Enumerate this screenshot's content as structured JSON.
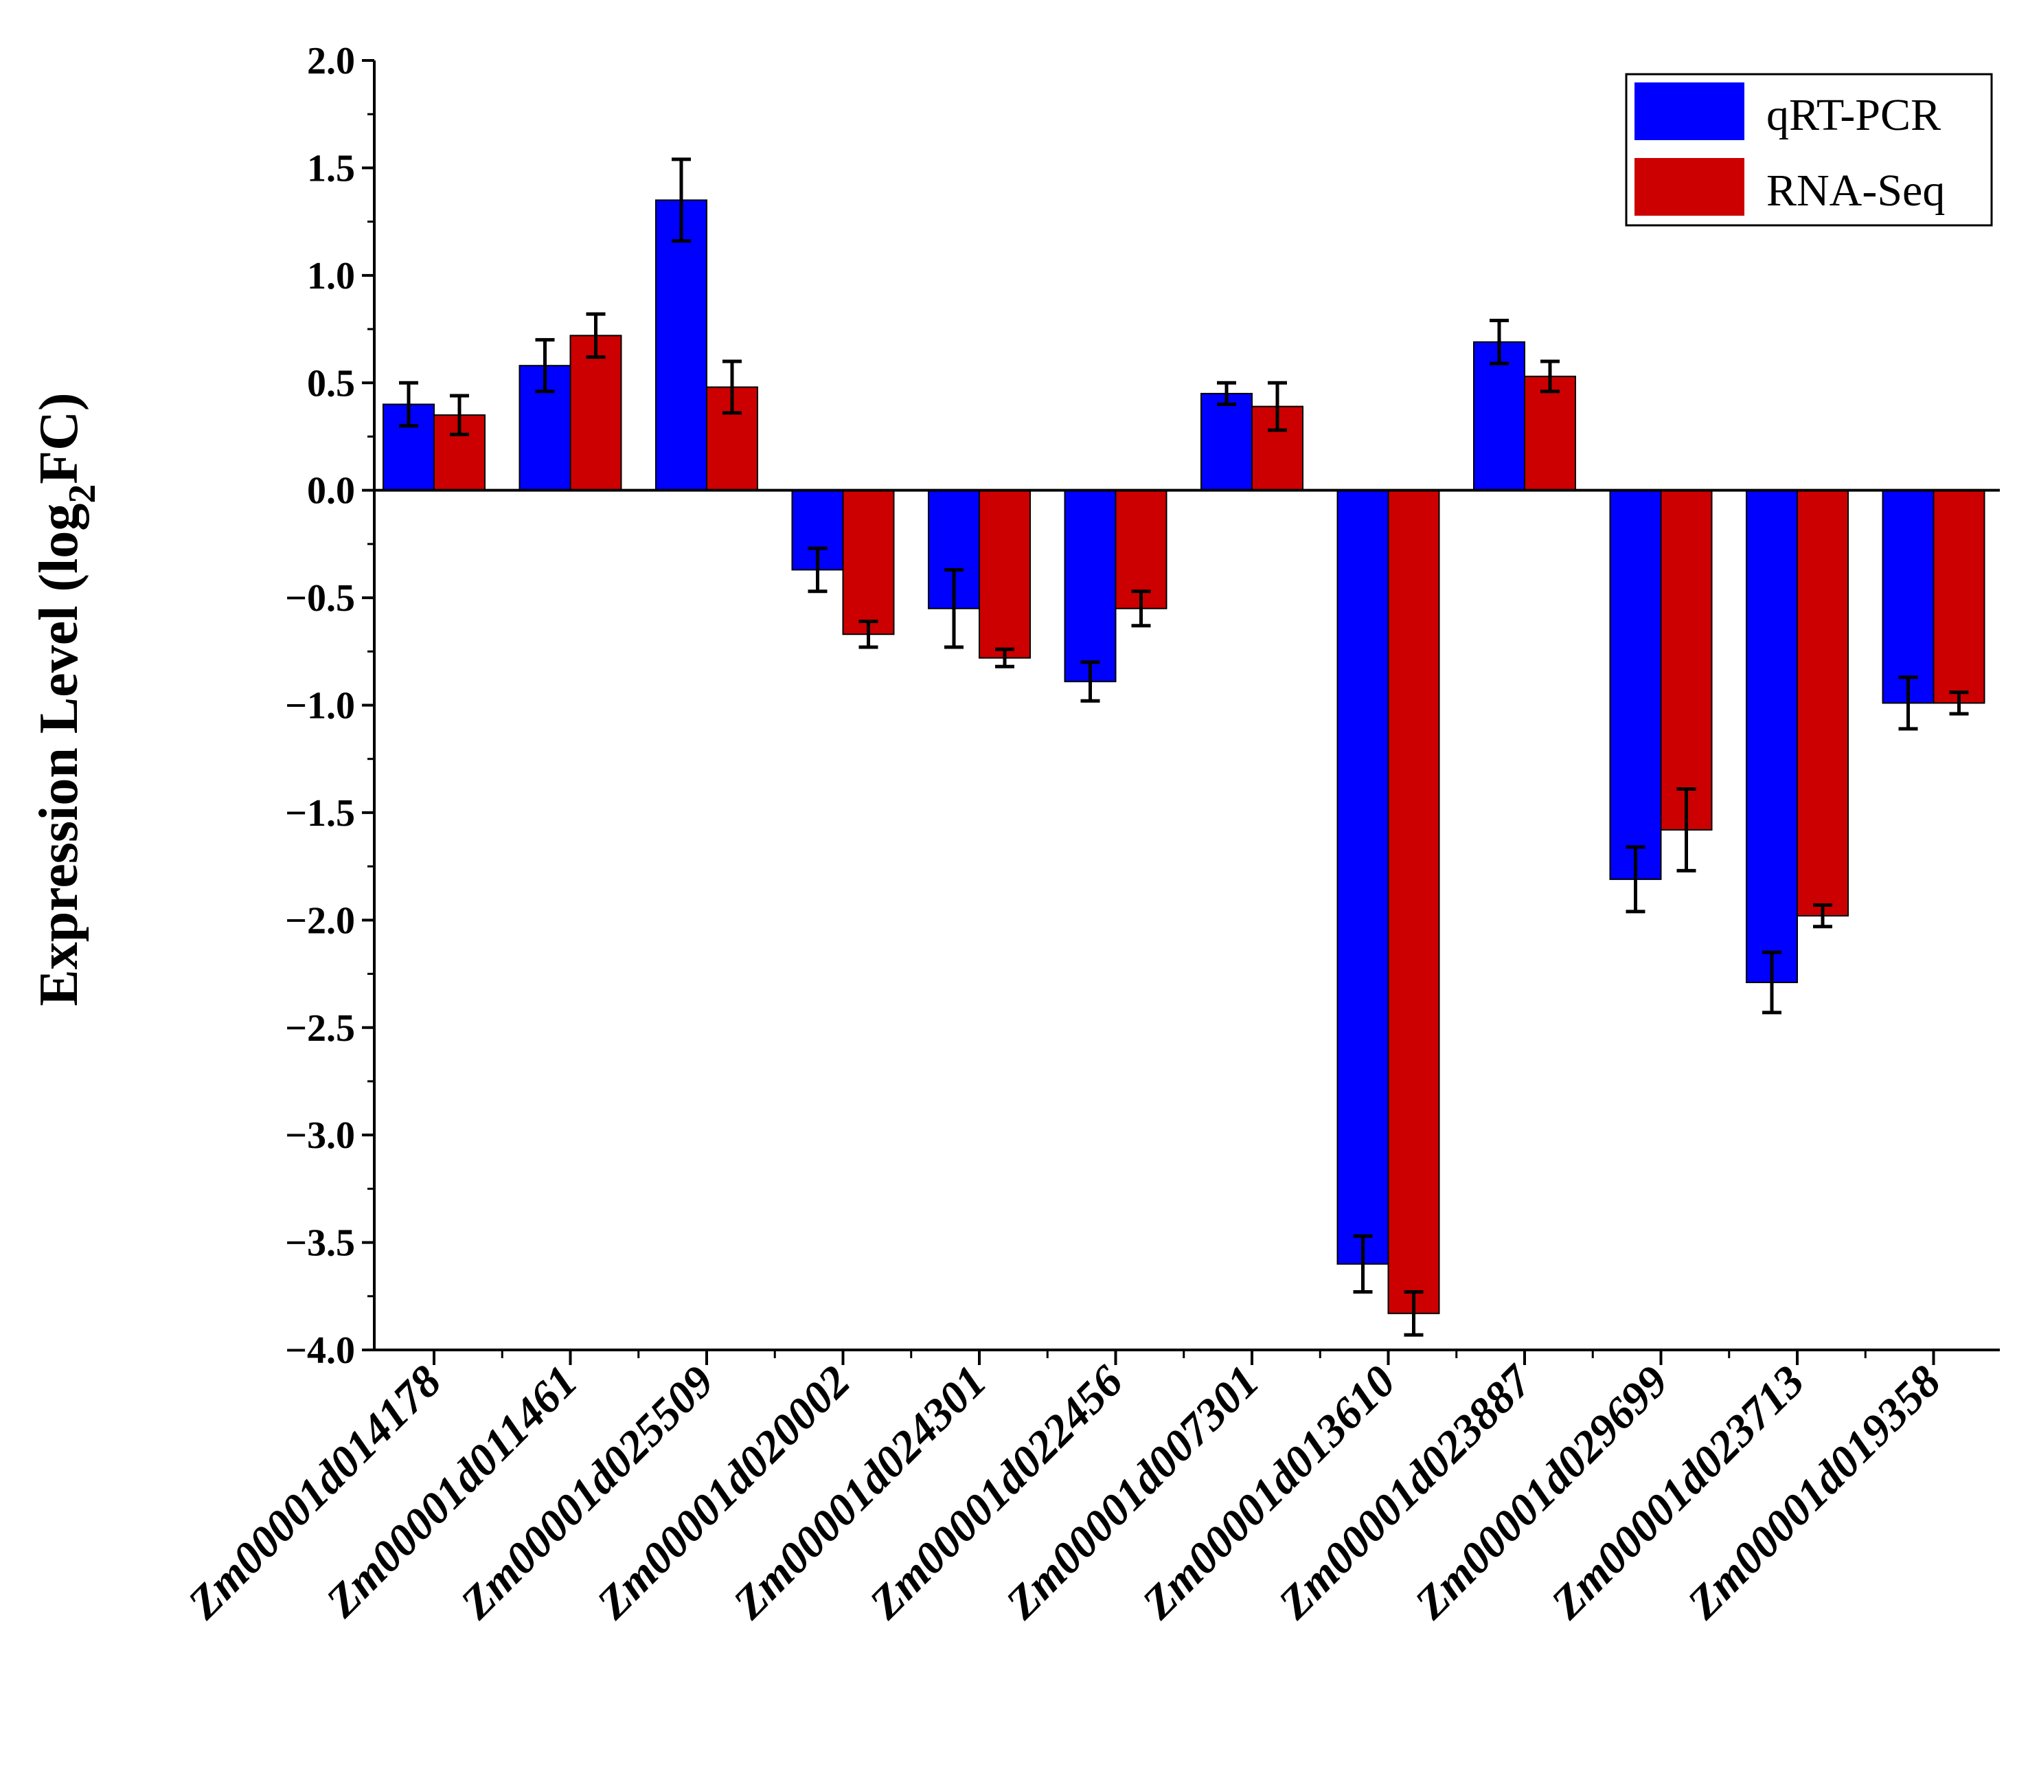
{
  "chart_data": {
    "type": "bar",
    "title": "",
    "xlabel": "",
    "ylabel_main": "Expression Level (log",
    "ylabel_sub": "2",
    "ylabel_tail": "FC)",
    "ylim": [
      -4.0,
      2.0
    ],
    "yticks": [
      2.0,
      1.5,
      1.0,
      0.5,
      0.0,
      -0.5,
      -1.0,
      -1.5,
      -2.0,
      -2.5,
      -3.0,
      -3.5,
      -4.0
    ],
    "ytick_labels": [
      "2.0",
      "1.5",
      "1.0",
      "0.5",
      "0.0",
      "−0.5",
      "−1.0",
      "−1.5",
      "−2.0",
      "−2.5",
      "−3.0",
      "−3.5",
      "−4.0"
    ],
    "categories": [
      "Zm00001d014178",
      "Zm00001d011461",
      "Zm00001d025509",
      "Zm00001d020002",
      "Zm00001d024301",
      "Zm00001d022456",
      "Zm00001d007301",
      "Zm00001d013610",
      "Zm00001d023887",
      "Zm00001d029699",
      "Zm00001d023713",
      "Zm00001d019358"
    ],
    "series": [
      {
        "name": "qRT-PCR",
        "color": "#0000ff",
        "values": [
          0.4,
          0.58,
          1.35,
          -0.37,
          -0.55,
          -0.89,
          0.45,
          -3.6,
          0.69,
          -1.81,
          -2.29,
          -0.99
        ],
        "errors": [
          0.1,
          0.12,
          0.19,
          0.1,
          0.18,
          0.09,
          0.05,
          0.13,
          0.1,
          0.15,
          0.14,
          0.12
        ]
      },
      {
        "name": "RNA-Seq",
        "color": "#cc0000",
        "values": [
          0.35,
          0.72,
          0.48,
          -0.67,
          -0.78,
          -0.55,
          0.39,
          -3.83,
          0.53,
          -1.58,
          -1.98,
          -0.99
        ],
        "errors": [
          0.09,
          0.1,
          0.12,
          0.06,
          0.04,
          0.08,
          0.11,
          0.1,
          0.07,
          0.19,
          0.05,
          0.05
        ]
      }
    ],
    "legend_position": "top-right",
    "grid": false
  }
}
